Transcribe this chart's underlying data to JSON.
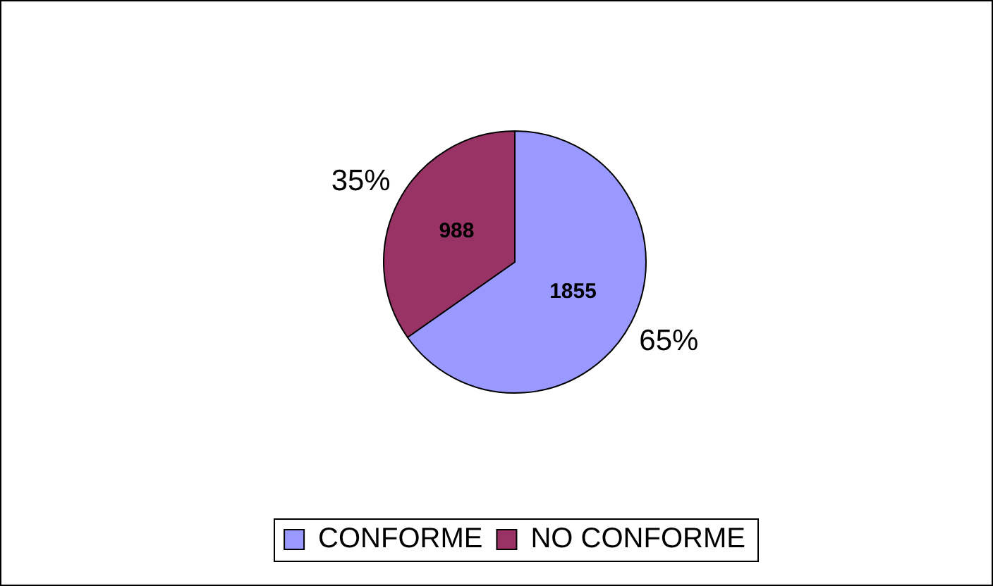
{
  "chart_data": {
    "type": "pie",
    "categories": [
      "CONFORME",
      "NO CONFORME"
    ],
    "values": [
      1855,
      988
    ],
    "colors": [
      "#9999ff",
      "#993366"
    ],
    "value_labels": [
      "1855",
      "988"
    ],
    "annotations": [
      {
        "text": "65%",
        "x": "CONFORME"
      },
      {
        "text": "35%",
        "x": "NO CONFORME"
      }
    ],
    "legend": "bottom"
  }
}
